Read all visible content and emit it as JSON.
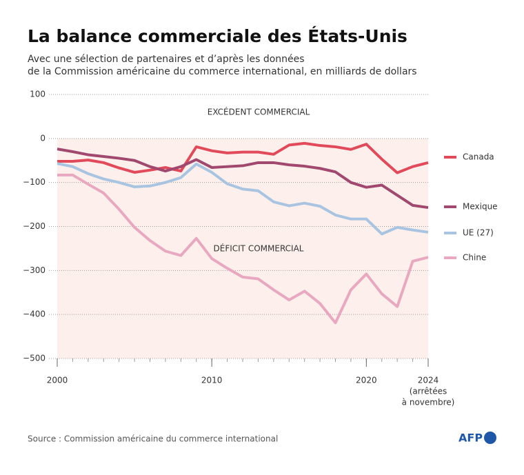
{
  "chart_data": {
    "type": "line",
    "title": "La balance commerciale des États-Unis",
    "subtitle": [
      "Avec une sélection de partenaires et d’après les données",
      "de la Commission américaine du commerce international, en milliards de dollars"
    ],
    "annotations": [
      "EXCÉDENT COMMERCIAL",
      "DÉFICIT COMMERCIAL"
    ],
    "x_note": [
      "(arrêtées",
      "à novembre)"
    ],
    "source": "Source : Commission américaine du commerce international",
    "logo": "AFP",
    "x": [
      2000,
      2001,
      2002,
      2003,
      2004,
      2005,
      2006,
      2007,
      2008,
      2009,
      2010,
      2011,
      2012,
      2013,
      2014,
      2015,
      2016,
      2017,
      2018,
      2019,
      2020,
      2021,
      2022,
      2023,
      2024
    ],
    "xlim": [
      2000,
      2024
    ],
    "xticks": [
      2000,
      2010,
      2020,
      2024
    ],
    "ylim": [
      -500,
      100
    ],
    "yticks": [
      100,
      0,
      {
        "value": -100,
        "label": "−100"
      },
      {
        "value": -200,
        "label": "−200"
      },
      {
        "value": -300,
        "label": "−300"
      },
      {
        "value": -400,
        "label": "−400"
      },
      {
        "value": -500,
        "label": "−500"
      }
    ],
    "grid": true,
    "series": [
      {
        "name": "Canada",
        "color": "#e04a5a",
        "values": [
          -52,
          -52,
          -49,
          -55,
          -67,
          -77,
          -72,
          -66,
          -74,
          -19,
          -28,
          -33,
          -31,
          -31,
          -36,
          -15,
          -11,
          -16,
          -19,
          -25,
          -13,
          -47,
          -78,
          -64,
          -55
        ]
      },
      {
        "name": "Mexique",
        "color": "#a0486e",
        "values": [
          -24,
          -30,
          -37,
          -41,
          -45,
          -50,
          -64,
          -74,
          -64,
          -48,
          -66,
          -64,
          -62,
          -55,
          -55,
          -60,
          -63,
          -68,
          -76,
          -100,
          -111,
          -106,
          -129,
          -152,
          -157
        ]
      },
      {
        "name": "UE (27)",
        "color": "#a8c4e0",
        "values": [
          -57,
          -64,
          -80,
          -92,
          -100,
          -110,
          -108,
          -100,
          -89,
          -58,
          -77,
          -103,
          -115,
          -119,
          -144,
          -153,
          -147,
          -154,
          -174,
          -183,
          -183,
          -217,
          -202,
          -208,
          -213
        ]
      },
      {
        "name": "Chine",
        "color": "#e8a8c0",
        "values": [
          -83,
          -83,
          -104,
          -124,
          -161,
          -202,
          -232,
          -256,
          -266,
          -227,
          -273,
          -295,
          -315,
          -319,
          -344,
          -367,
          -347,
          -375,
          -419,
          -344,
          -308,
          -353,
          -382,
          -279,
          -270
        ]
      }
    ]
  }
}
